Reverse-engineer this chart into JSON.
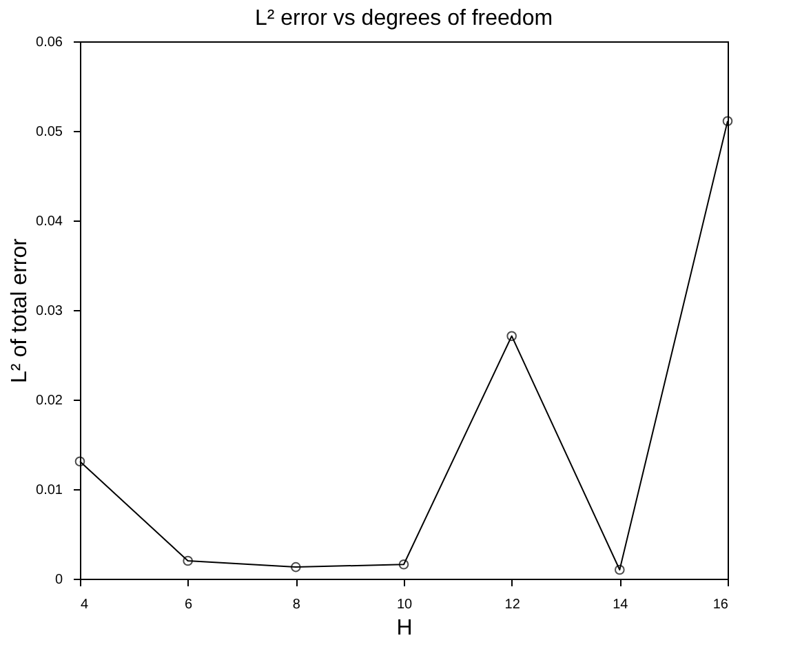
{
  "chart_data": {
    "type": "line",
    "title": "L² error vs degrees of freedom",
    "xlabel": "H",
    "ylabel": "L² of total error",
    "x": [
      4,
      6,
      8,
      10,
      12,
      14,
      16
    ],
    "series": [
      {
        "color": "#000000",
        "values": [
          0.0131,
          0.002,
          0.0013,
          0.0016,
          0.0271,
          0.001,
          0.0511
        ]
      }
    ],
    "xlim": [
      4,
      16
    ],
    "xticks": [
      4,
      6,
      8,
      10,
      12,
      14,
      16
    ],
    "ylim": [
      0,
      0.06
    ],
    "yticks": [
      0,
      0.01,
      0.02,
      0.03,
      0.04,
      0.05,
      0.06
    ],
    "marker": "circle",
    "line_style": "solid",
    "grid": false,
    "legend": false
  }
}
